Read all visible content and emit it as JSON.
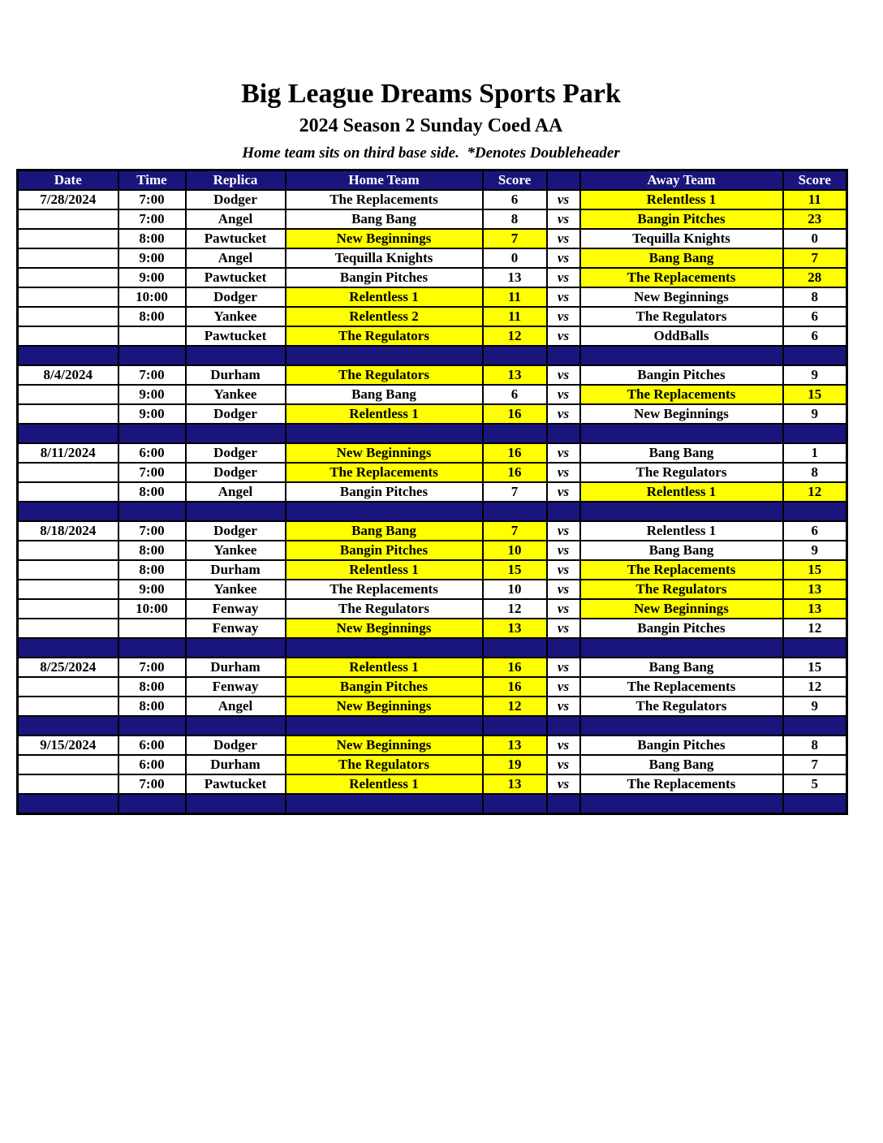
{
  "page": {
    "title": "Big League Dreams Sports Park",
    "subtitle": "2024 Season 2 Sunday Coed AA",
    "note": "Home team sits on third base side.  *Denotes Doubleheader"
  },
  "colors": {
    "navy": "#1a157d",
    "highlight": "#ffff00",
    "header_text": "#ffffff"
  },
  "table": {
    "headers": [
      "Date",
      "Time",
      "Replica",
      "Home Team",
      "Score",
      "",
      "Away Team",
      "Score"
    ],
    "vs_label": "vs",
    "rows": [
      {
        "type": "game",
        "date": "7/28/2024",
        "time": "7:00",
        "replica": "Dodger",
        "home": "The Replacements",
        "home_score": "6",
        "home_highlight": false,
        "away": "Relentless 1",
        "away_score": "11",
        "away_highlight": true
      },
      {
        "type": "game",
        "date": "",
        "time": "7:00",
        "replica": "Angel",
        "home": "Bang Bang",
        "home_score": "8",
        "home_highlight": false,
        "away": "Bangin Pitches",
        "away_score": "23",
        "away_highlight": true
      },
      {
        "type": "game",
        "date": "",
        "time": "8:00",
        "replica": "Pawtucket",
        "home": "New Beginnings",
        "home_score": "7",
        "home_highlight": true,
        "away": "Tequilla Knights",
        "away_score": "0",
        "away_highlight": false
      },
      {
        "type": "game",
        "date": "",
        "time": "9:00",
        "replica": "Angel",
        "home": "Tequilla Knights",
        "home_score": "0",
        "home_highlight": false,
        "away": "Bang Bang",
        "away_score": "7",
        "away_highlight": true
      },
      {
        "type": "game",
        "date": "",
        "time": "9:00",
        "replica": "Pawtucket",
        "home": "Bangin Pitches",
        "home_score": "13",
        "home_highlight": false,
        "away": "The Replacements",
        "away_score": "28",
        "away_highlight": true
      },
      {
        "type": "game",
        "date": "",
        "time": "10:00",
        "replica": "Dodger",
        "home": "Relentless 1",
        "home_score": "11",
        "home_highlight": true,
        "away": "New Beginnings",
        "away_score": "8",
        "away_highlight": false
      },
      {
        "type": "game",
        "date": "",
        "time": "8:00",
        "replica": "Yankee",
        "home": "Relentless 2",
        "home_score": "11",
        "home_highlight": true,
        "away": "The Regulators",
        "away_score": "6",
        "away_highlight": false
      },
      {
        "type": "game",
        "date": "",
        "time": "",
        "replica": "Pawtucket",
        "home": "The Regulators",
        "home_score": "12",
        "home_highlight": true,
        "away": "OddBalls",
        "away_score": "6",
        "away_highlight": false
      },
      {
        "type": "separator"
      },
      {
        "type": "game",
        "date": "8/4/2024",
        "time": "7:00",
        "replica": "Durham",
        "home": "The Regulators",
        "home_score": "13",
        "home_highlight": true,
        "away": "Bangin Pitches",
        "away_score": "9",
        "away_highlight": false
      },
      {
        "type": "game",
        "date": "",
        "time": "9:00",
        "replica": "Yankee",
        "home": "Bang Bang",
        "home_score": "6",
        "home_highlight": false,
        "away": "The Replacements",
        "away_score": "15",
        "away_highlight": true
      },
      {
        "type": "game",
        "date": "",
        "time": "9:00",
        "replica": "Dodger",
        "home": "Relentless 1",
        "home_score": "16",
        "home_highlight": true,
        "away": "New Beginnings",
        "away_score": "9",
        "away_highlight": false
      },
      {
        "type": "separator"
      },
      {
        "type": "game",
        "date": "8/11/2024",
        "time": "6:00",
        "replica": "Dodger",
        "home": "New Beginnings",
        "home_score": "16",
        "home_highlight": true,
        "away": "Bang Bang",
        "away_score": "1",
        "away_highlight": false
      },
      {
        "type": "game",
        "date": "",
        "time": "7:00",
        "replica": "Dodger",
        "home": "The Replacements",
        "home_score": "16",
        "home_highlight": true,
        "away": "The Regulators",
        "away_score": "8",
        "away_highlight": false
      },
      {
        "type": "game",
        "date": "",
        "time": "8:00",
        "replica": "Angel",
        "home": "Bangin Pitches",
        "home_score": "7",
        "home_highlight": false,
        "away": "Relentless 1",
        "away_score": "12",
        "away_highlight": true
      },
      {
        "type": "separator"
      },
      {
        "type": "game",
        "date": "8/18/2024",
        "time": "7:00",
        "replica": "Dodger",
        "home": "Bang Bang",
        "home_score": "7",
        "home_highlight": true,
        "away": "Relentless 1",
        "away_score": "6",
        "away_highlight": false
      },
      {
        "type": "game",
        "date": "",
        "time": "8:00",
        "replica": "Yankee",
        "home": "Bangin Pitches",
        "home_score": "10",
        "home_highlight": true,
        "away": "Bang Bang",
        "away_score": "9",
        "away_highlight": false
      },
      {
        "type": "game",
        "date": "",
        "time": "8:00",
        "replica": "Durham",
        "home": "Relentless 1",
        "home_score": "15",
        "home_highlight": true,
        "away": "The Replacements",
        "away_score": "15",
        "away_highlight": true
      },
      {
        "type": "game",
        "date": "",
        "time": "9:00",
        "replica": "Yankee",
        "home": "The Replacements",
        "home_score": "10",
        "home_highlight": false,
        "away": "The Regulators",
        "away_score": "13",
        "away_highlight": true
      },
      {
        "type": "game",
        "date": "",
        "time": "10:00",
        "replica": "Fenway",
        "home": "The Regulators",
        "home_score": "12",
        "home_highlight": false,
        "away": "New Beginnings",
        "away_score": "13",
        "away_highlight": true
      },
      {
        "type": "game",
        "date": "",
        "time": "",
        "replica": "Fenway",
        "home": "New Beginnings",
        "home_score": "13",
        "home_highlight": true,
        "away": "Bangin Pitches",
        "away_score": "12",
        "away_highlight": false
      },
      {
        "type": "separator"
      },
      {
        "type": "game",
        "date": "8/25/2024",
        "time": "7:00",
        "replica": "Durham",
        "home": "Relentless 1",
        "home_score": "16",
        "home_highlight": true,
        "away": "Bang Bang",
        "away_score": "15",
        "away_highlight": false
      },
      {
        "type": "game",
        "date": "",
        "time": "8:00",
        "replica": "Fenway",
        "home": "Bangin Pitches",
        "home_score": "16",
        "home_highlight": true,
        "away": "The Replacements",
        "away_score": "12",
        "away_highlight": false
      },
      {
        "type": "game",
        "date": "",
        "time": "8:00",
        "replica": "Angel",
        "home": "New Beginnings",
        "home_score": "12",
        "home_highlight": true,
        "away": "The Regulators",
        "away_score": "9",
        "away_highlight": false
      },
      {
        "type": "separator"
      },
      {
        "type": "game",
        "date": "9/15/2024",
        "time": "6:00",
        "replica": "Dodger",
        "home": "New Beginnings",
        "home_score": "13",
        "home_highlight": true,
        "away": "Bangin Pitches",
        "away_score": "8",
        "away_highlight": false
      },
      {
        "type": "game",
        "date": "",
        "time": "6:00",
        "replica": "Durham",
        "home": "The Regulators",
        "home_score": "19",
        "home_highlight": true,
        "away": "Bang Bang",
        "away_score": "7",
        "away_highlight": false
      },
      {
        "type": "game",
        "date": "",
        "time": "7:00",
        "replica": "Pawtucket",
        "home": "Relentless 1",
        "home_score": "13",
        "home_highlight": true,
        "away": "The Replacements",
        "away_score": "5",
        "away_highlight": false
      },
      {
        "type": "separator"
      }
    ]
  }
}
